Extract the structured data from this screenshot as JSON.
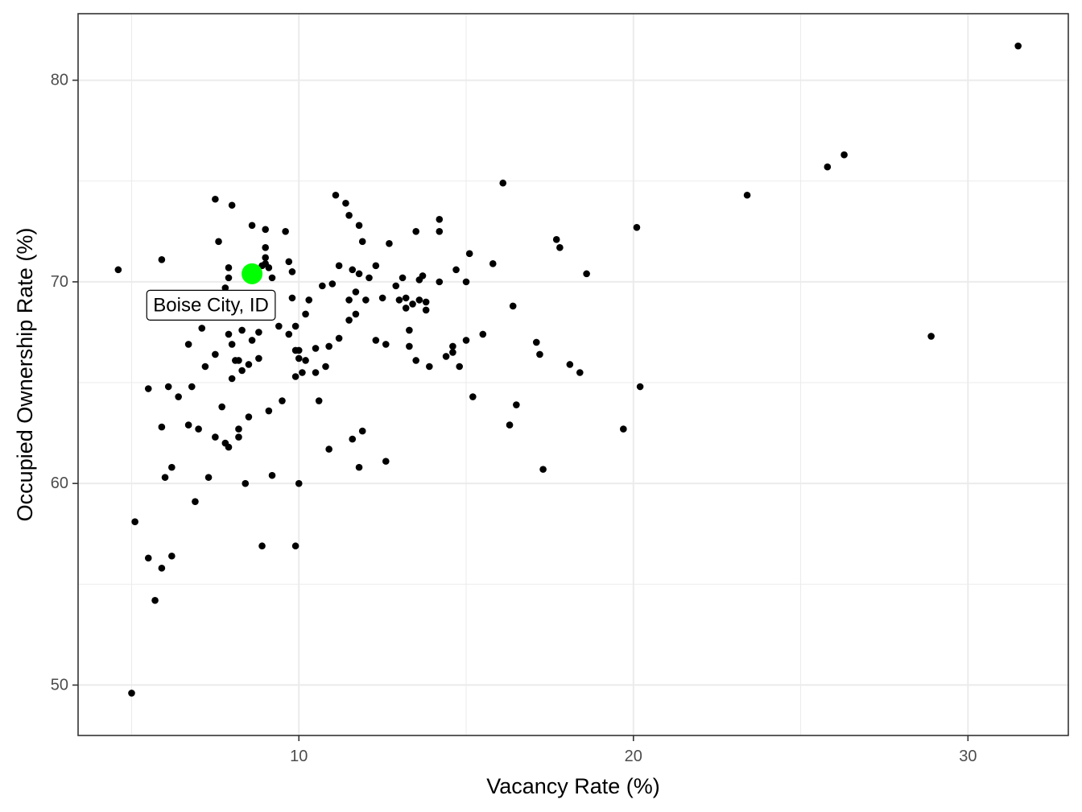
{
  "chart_data": {
    "type": "scatter",
    "xlabel": "Vacancy Rate (%)",
    "ylabel": "Occupied Ownership Rate (%)",
    "xlim": [
      3.4,
      33.0
    ],
    "ylim": [
      47.5,
      83.3
    ],
    "x_ticks": [
      10,
      20,
      30
    ],
    "y_ticks": [
      50,
      60,
      70,
      80
    ],
    "x_tick_labels": [
      "10",
      "20",
      "30"
    ],
    "y_tick_labels": [
      "50",
      "60",
      "70",
      "80"
    ],
    "grid": true,
    "legend": "none",
    "colors": {
      "point": "#000000",
      "highlight": "#00ff00",
      "grid": "#ebebeb",
      "panel_border": "#333333"
    },
    "highlight": {
      "label": "Boise City, ID",
      "x": 8.6,
      "y": 70.4
    },
    "points": [
      [
        4.6,
        70.6
      ],
      [
        5.0,
        49.6
      ],
      [
        5.1,
        58.1
      ],
      [
        5.5,
        56.3
      ],
      [
        5.5,
        64.7
      ],
      [
        5.7,
        54.2
      ],
      [
        5.9,
        55.8
      ],
      [
        5.9,
        62.8
      ],
      [
        5.9,
        71.1
      ],
      [
        6.0,
        60.3
      ],
      [
        6.1,
        64.8
      ],
      [
        6.2,
        60.8
      ],
      [
        6.2,
        56.4
      ],
      [
        6.4,
        64.3
      ],
      [
        6.7,
        62.9
      ],
      [
        6.7,
        66.9
      ],
      [
        6.8,
        64.8
      ],
      [
        6.9,
        59.1
      ],
      [
        7.0,
        62.7
      ],
      [
        7.1,
        67.7
      ],
      [
        7.2,
        65.8
      ],
      [
        7.3,
        60.3
      ],
      [
        7.5,
        62.3
      ],
      [
        7.5,
        66.4
      ],
      [
        7.5,
        74.1
      ],
      [
        7.6,
        72.0
      ],
      [
        7.7,
        63.8
      ],
      [
        7.8,
        62.0
      ],
      [
        7.8,
        69.7
      ],
      [
        7.9,
        70.2
      ],
      [
        7.9,
        70.7
      ],
      [
        7.9,
        67.4
      ],
      [
        7.9,
        61.8
      ],
      [
        8.0,
        66.9
      ],
      [
        8.0,
        65.2
      ],
      [
        8.0,
        73.8
      ],
      [
        8.1,
        66.1
      ],
      [
        8.2,
        66.1
      ],
      [
        8.2,
        62.7
      ],
      [
        8.2,
        62.3
      ],
      [
        8.3,
        65.6
      ],
      [
        8.3,
        67.6
      ],
      [
        8.4,
        60.0
      ],
      [
        8.5,
        63.3
      ],
      [
        8.5,
        65.9
      ],
      [
        8.6,
        67.1
      ],
      [
        8.6,
        72.8
      ],
      [
        8.8,
        67.5
      ],
      [
        8.8,
        66.2
      ],
      [
        8.9,
        56.9
      ],
      [
        8.9,
        70.8
      ],
      [
        9.0,
        71.7
      ],
      [
        9.0,
        71.2
      ],
      [
        9.0,
        72.6
      ],
      [
        9.0,
        70.9
      ],
      [
        9.1,
        63.6
      ],
      [
        9.1,
        70.7
      ],
      [
        9.2,
        70.2
      ],
      [
        9.2,
        60.4
      ],
      [
        9.4,
        67.8
      ],
      [
        9.5,
        64.1
      ],
      [
        9.6,
        72.5
      ],
      [
        9.7,
        67.4
      ],
      [
        9.7,
        71.0
      ],
      [
        9.8,
        70.5
      ],
      [
        9.8,
        69.2
      ],
      [
        9.9,
        66.6
      ],
      [
        9.9,
        67.8
      ],
      [
        9.9,
        65.3
      ],
      [
        9.9,
        56.9
      ],
      [
        10.0,
        60.0
      ],
      [
        10.0,
        66.2
      ],
      [
        10.0,
        66.6
      ],
      [
        10.1,
        65.5
      ],
      [
        10.2,
        66.1
      ],
      [
        10.2,
        68.4
      ],
      [
        10.3,
        69.1
      ],
      [
        10.5,
        66.7
      ],
      [
        10.5,
        65.5
      ],
      [
        10.6,
        64.1
      ],
      [
        10.7,
        69.8
      ],
      [
        10.8,
        65.8
      ],
      [
        10.9,
        66.8
      ],
      [
        10.9,
        61.7
      ],
      [
        11.0,
        69.9
      ],
      [
        11.1,
        74.3
      ],
      [
        11.2,
        67.2
      ],
      [
        11.2,
        70.8
      ],
      [
        11.4,
        73.9
      ],
      [
        11.5,
        73.3
      ],
      [
        11.5,
        69.1
      ],
      [
        11.5,
        68.1
      ],
      [
        11.6,
        70.6
      ],
      [
        11.6,
        62.2
      ],
      [
        11.7,
        69.5
      ],
      [
        11.7,
        68.4
      ],
      [
        11.8,
        72.8
      ],
      [
        11.8,
        70.4
      ],
      [
        11.8,
        60.8
      ],
      [
        11.9,
        72.0
      ],
      [
        11.9,
        62.6
      ],
      [
        12.0,
        69.1
      ],
      [
        12.1,
        70.2
      ],
      [
        12.3,
        70.8
      ],
      [
        12.3,
        67.1
      ],
      [
        12.5,
        69.2
      ],
      [
        12.6,
        66.9
      ],
      [
        12.6,
        61.1
      ],
      [
        12.7,
        71.9
      ],
      [
        12.9,
        69.8
      ],
      [
        13.0,
        69.1
      ],
      [
        13.1,
        70.2
      ],
      [
        13.2,
        69.2
      ],
      [
        13.2,
        68.7
      ],
      [
        13.3,
        66.8
      ],
      [
        13.3,
        67.6
      ],
      [
        13.4,
        68.9
      ],
      [
        13.5,
        66.1
      ],
      [
        13.5,
        72.5
      ],
      [
        13.6,
        70.1
      ],
      [
        13.6,
        69.1
      ],
      [
        13.7,
        70.3
      ],
      [
        13.8,
        68.6
      ],
      [
        13.8,
        69.0
      ],
      [
        13.9,
        65.8
      ],
      [
        14.2,
        70.0
      ],
      [
        14.2,
        73.1
      ],
      [
        14.2,
        72.5
      ],
      [
        14.4,
        66.3
      ],
      [
        14.6,
        66.8
      ],
      [
        14.6,
        66.5
      ],
      [
        14.7,
        70.6
      ],
      [
        14.8,
        65.8
      ],
      [
        15.0,
        67.1
      ],
      [
        15.0,
        70.0
      ],
      [
        15.1,
        71.4
      ],
      [
        15.2,
        64.3
      ],
      [
        15.5,
        67.4
      ],
      [
        15.8,
        70.9
      ],
      [
        16.1,
        74.9
      ],
      [
        16.3,
        62.9
      ],
      [
        16.4,
        68.8
      ],
      [
        16.5,
        63.9
      ],
      [
        17.1,
        67.0
      ],
      [
        17.2,
        66.4
      ],
      [
        17.3,
        60.7
      ],
      [
        17.7,
        72.1
      ],
      [
        17.8,
        71.7
      ],
      [
        18.1,
        65.9
      ],
      [
        18.4,
        65.5
      ],
      [
        18.6,
        70.4
      ],
      [
        19.7,
        62.7
      ],
      [
        20.1,
        72.7
      ],
      [
        20.2,
        64.8
      ],
      [
        23.4,
        74.3
      ],
      [
        25.8,
        75.7
      ],
      [
        26.3,
        76.3
      ],
      [
        28.9,
        67.3
      ],
      [
        31.5,
        81.7
      ]
    ]
  },
  "icons": [
    "none"
  ]
}
